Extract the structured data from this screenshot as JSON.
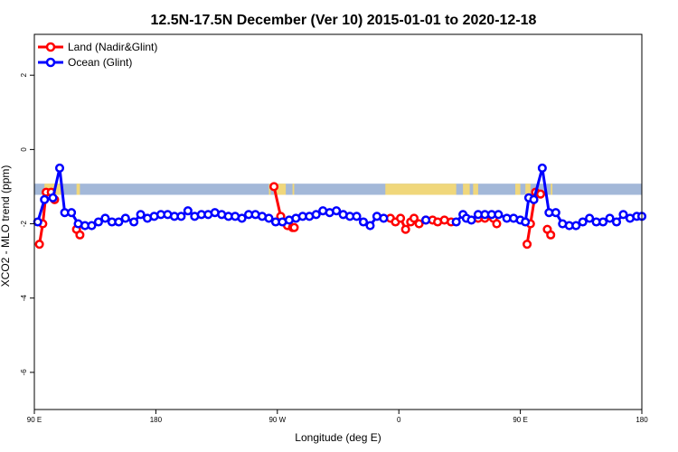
{
  "chart_data": {
    "type": "line",
    "title": "12.5N-17.5N December (Ver 10)   2015-01-01 to 2020-12-18",
    "xlabel": "Longitude (deg E)",
    "ylabel": "XCO2 - MLO trend (ppm)",
    "xlim": [
      90,
      450
    ],
    "ylim": [
      -7,
      3.1
    ],
    "x_ticks": [
      {
        "value": 90,
        "label": "90 E"
      },
      {
        "value": 162,
        "label": "180"
      },
      {
        "value": 234,
        "label": "90 W"
      },
      {
        "value": 306,
        "label": "0"
      },
      {
        "value": 378,
        "label": "90 E"
      },
      {
        "value": 450,
        "label": "180"
      }
    ],
    "y_ticks": [
      {
        "value": -6,
        "label": "-6"
      },
      {
        "value": -4,
        "label": "-4"
      },
      {
        "value": -2,
        "label": "-2"
      },
      {
        "value": 0,
        "label": "0"
      },
      {
        "value": 2,
        "label": "2"
      }
    ],
    "grid": false,
    "legend_position": "top-left",
    "land_mask_band": {
      "y_range": [
        -1.22,
        -0.92
      ],
      "ocean_color": "#a3b8d8",
      "land_color": "#f0d77b",
      "land_segments": [
        [
          96,
          99
        ],
        [
          98,
          107
        ],
        [
          115,
          117
        ],
        [
          229,
          230
        ],
        [
          232,
          239
        ],
        [
          243,
          244
        ],
        [
          298,
          340
        ],
        [
          344,
          348
        ],
        [
          350,
          353
        ],
        [
          375,
          378
        ],
        [
          381,
          384
        ],
        [
          396,
          397
        ]
      ]
    },
    "series": [
      {
        "name": "Land (Nadir&Glint)",
        "color": "#ff0000",
        "segments": [
          {
            "x": [
              93,
              95,
              97,
              100,
              102
            ],
            "y": [
              -2.55,
              -2.0,
              -1.15,
              -1.15,
              -1.35
            ]
          },
          {
            "x": [
              115,
              117
            ],
            "y": [
              -2.15,
              -2.3
            ]
          },
          {
            "x": [
              232,
              236,
              240,
              243,
              244
            ],
            "y": [
              -1.0,
              -1.8,
              -2.05,
              -2.1,
              -2.1
            ]
          },
          {
            "x": [
              301,
              304,
              307,
              310,
              313,
              315,
              318,
              322,
              326,
              329,
              333,
              337
            ],
            "y": [
              -1.85,
              -1.95,
              -1.85,
              -2.15,
              -1.95,
              -1.85,
              -2.0,
              -1.9,
              -1.9,
              -1.95,
              -1.9,
              -1.95
            ]
          },
          {
            "x": [
              353,
              357
            ],
            "y": [
              -1.85,
              -1.85
            ]
          },
          {
            "x": [
              362,
              364
            ],
            "y": [
              -1.85,
              -2.0
            ]
          },
          {
            "x": [
              382,
              384,
              387,
              390
            ],
            "y": [
              -2.55,
              -2.0,
              -1.15,
              -1.2
            ]
          },
          {
            "x": [
              394,
              396
            ],
            "y": [
              -2.15,
              -2.3
            ]
          }
        ]
      },
      {
        "name": "Ocean (Glint)",
        "color": "#0000ff",
        "segments": [
          {
            "x": [
              92,
              96,
              101,
              105,
              108,
              112,
              116,
              120,
              124,
              128,
              132,
              136,
              140,
              144,
              149,
              153,
              157,
              161,
              165,
              169,
              173,
              177,
              181,
              185,
              189,
              193,
              197,
              201,
              205,
              209,
              213,
              217,
              221,
              225,
              229,
              233,
              237,
              241,
              245,
              249,
              253,
              257,
              261,
              265,
              269,
              273,
              277,
              281,
              285,
              289,
              293,
              297
            ],
            "y": [
              -1.95,
              -1.35,
              -1.3,
              -0.5,
              -1.7,
              -1.7,
              -2.0,
              -2.05,
              -2.05,
              -1.95,
              -1.85,
              -1.95,
              -1.95,
              -1.85,
              -1.95,
              -1.75,
              -1.85,
              -1.8,
              -1.75,
              -1.75,
              -1.8,
              -1.8,
              -1.65,
              -1.8,
              -1.75,
              -1.75,
              -1.7,
              -1.75,
              -1.8,
              -1.8,
              -1.85,
              -1.75,
              -1.75,
              -1.8,
              -1.85,
              -1.95,
              -1.95,
              -1.9,
              -1.85,
              -1.8,
              -1.8,
              -1.75,
              -1.65,
              -1.7,
              -1.65,
              -1.75,
              -1.8,
              -1.8,
              -1.95,
              -2.05,
              -1.8,
              -1.85
            ]
          },
          {
            "x": [
              322
            ],
            "y": [
              -1.9
            ]
          },
          {
            "x": [
              340,
              344,
              346,
              349,
              353,
              357,
              361,
              365,
              370,
              374,
              378,
              381,
              383,
              386,
              391,
              395,
              399,
              403,
              407,
              411,
              415,
              419,
              423,
              427,
              431,
              435,
              439,
              443,
              447,
              450
            ],
            "y": [
              -1.95,
              -1.75,
              -1.85,
              -1.9,
              -1.75,
              -1.75,
              -1.75,
              -1.75,
              -1.85,
              -1.85,
              -1.9,
              -1.95,
              -1.3,
              -1.35,
              -0.5,
              -1.7,
              -1.7,
              -2.0,
              -2.05,
              -2.05,
              -1.95,
              -1.85,
              -1.95,
              -1.95,
              -1.85,
              -1.95,
              -1.75,
              -1.85,
              -1.8,
              -1.8
            ]
          }
        ]
      }
    ]
  }
}
